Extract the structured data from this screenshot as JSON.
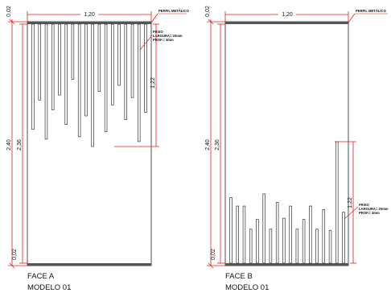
{
  "colors": {
    "line": "#222222",
    "dimension": "#e0201c",
    "bar_fill": "#ffffff",
    "bar_stroke": "#333333"
  },
  "labels": {
    "perfil": "PERFIL METÁLICO",
    "friso_title": "FRISO",
    "friso_largura": "LARGURA= 20mm",
    "friso_prof": "PROF.= 3mm"
  },
  "panel_a": {
    "caption_face": "FACE A",
    "caption_model": "MODELO 01",
    "dim_width": "1,20",
    "dim_height": "2,40",
    "dim_inner": "2,36",
    "dim_top": "0,02",
    "dim_bottom": "0,02",
    "dim_groove": "1,22",
    "groove_depths": [
      0.86,
      0.62,
      0.94,
      0.7,
      0.58,
      0.82,
      0.45,
      0.92,
      0.75,
      1.0,
      0.55,
      0.88,
      0.66,
      0.5,
      0.78,
      0.6,
      0.96,
      0.72
    ]
  },
  "panel_b": {
    "caption_face": "FACE B",
    "caption_model": "MODELO 01",
    "dim_width": "1,20",
    "dim_height": "2,40",
    "dim_inner": "2,36",
    "dim_top": "0,02",
    "dim_bottom": "0,02",
    "dim_groove": "1,22",
    "groove_heights": [
      0.54,
      0.47,
      0.47,
      0.28,
      0.36,
      0.57,
      0.28,
      0.5,
      0.37,
      0.47,
      0.28,
      0.36,
      0.47,
      0.28,
      0.44,
      0.27,
      1.0,
      0.42
    ]
  }
}
